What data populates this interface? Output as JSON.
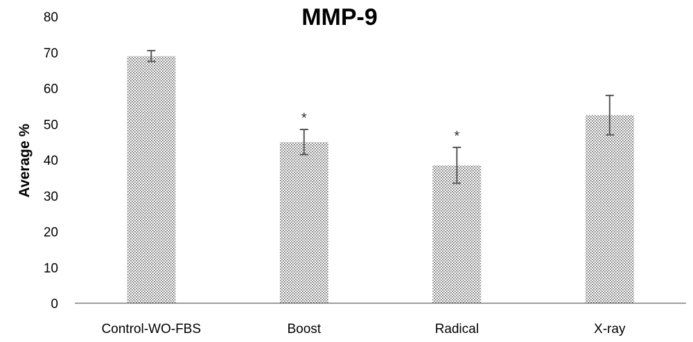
{
  "chart_data": {
    "type": "bar",
    "title": "MMP-9",
    "xlabel": "",
    "ylabel": "Average %",
    "ylim": [
      0,
      80
    ],
    "yticks": [
      0,
      10,
      20,
      30,
      40,
      50,
      60,
      70,
      80
    ],
    "categories": [
      "Control-WO-FBS",
      "Boost",
      "Radical",
      "X-ray"
    ],
    "values": [
      69,
      45,
      38.5,
      52.5
    ],
    "error": [
      1.5,
      3.5,
      5,
      5.5
    ],
    "annotations": [
      "",
      "*",
      "*",
      ""
    ],
    "grid": false,
    "bar_pattern": "dotted",
    "colors": {
      "bar_dot": "#555555",
      "bar_bg": "#ffffff",
      "axis": "#7f7f7f",
      "error": "#555555"
    }
  }
}
